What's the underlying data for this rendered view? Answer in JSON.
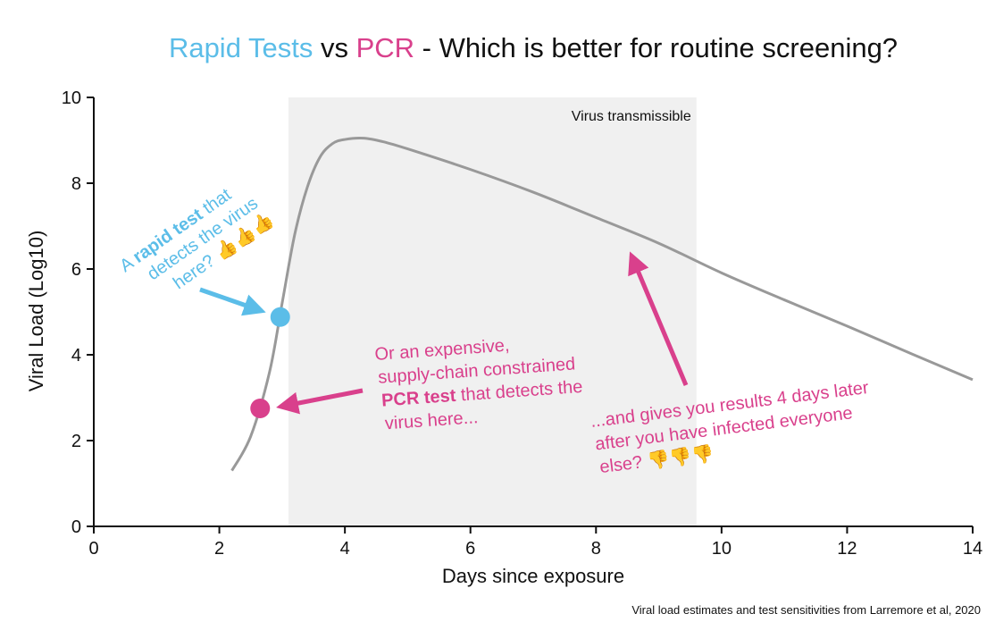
{
  "chart_data": {
    "type": "line",
    "title": {
      "part1": "Rapid Tests",
      "part2": " vs ",
      "part3": "PCR",
      "part4": " - Which is better for routine screening?"
    },
    "xlabel": "Days since exposure",
    "ylabel": "Viral Load (Log10)",
    "xlim": [
      0,
      14
    ],
    "ylim": [
      0,
      10
    ],
    "xticks": [
      0,
      2,
      4,
      6,
      8,
      10,
      12,
      14
    ],
    "yticks": [
      0,
      2,
      4,
      6,
      8,
      10
    ],
    "shaded_region": {
      "x_start": 3.1,
      "x_end": 9.6,
      "label": "Virus transmissible"
    },
    "series": [
      {
        "name": "Viral load trajectory",
        "x": [
          2.2,
          2.5,
          2.8,
          3.0,
          3.2,
          3.4,
          3.6,
          3.8,
          4.0,
          4.3,
          4.6,
          5.0,
          6.0,
          7.0,
          8.0,
          9.0,
          10.0,
          11.0,
          12.0,
          13.0,
          14.0
        ],
        "y": [
          1.3,
          2.1,
          3.6,
          5.2,
          6.8,
          7.9,
          8.6,
          8.92,
          9.02,
          9.05,
          8.97,
          8.8,
          8.32,
          7.79,
          7.2,
          6.6,
          5.91,
          5.28,
          4.67,
          4.04,
          3.42
        ]
      }
    ],
    "points": [
      {
        "name": "rapid",
        "x": 2.97,
        "y": 4.88
      },
      {
        "name": "pcr",
        "x": 2.65,
        "y": 2.75
      }
    ],
    "annotations": {
      "rapid": {
        "line1_pre": "A ",
        "line1_bold": "rapid test",
        "line1_post": " that",
        "line2": "detects the virus",
        "line3": "here?",
        "emoji": "👍👍👍"
      },
      "pcr": {
        "line1": "Or an expensive,",
        "line2": "supply-chain constrained",
        "line3_bold": "PCR test",
        "line3_post": " that detects the",
        "line4": "virus here..."
      },
      "late": {
        "line1": "...and gives you results 4 days later",
        "line2": "after you have infected everyone",
        "line3": "else?",
        "emoji": "👎👎👎"
      }
    },
    "source": "Viral load estimates and test sensitivities from Larremore et al, 2020"
  },
  "colors": {
    "rapid": "#5bbde8",
    "pcr": "#d9408c",
    "line": "#999999",
    "shade": "#f0f0f0",
    "text": "#111111",
    "thumb": "#f2b63c"
  }
}
